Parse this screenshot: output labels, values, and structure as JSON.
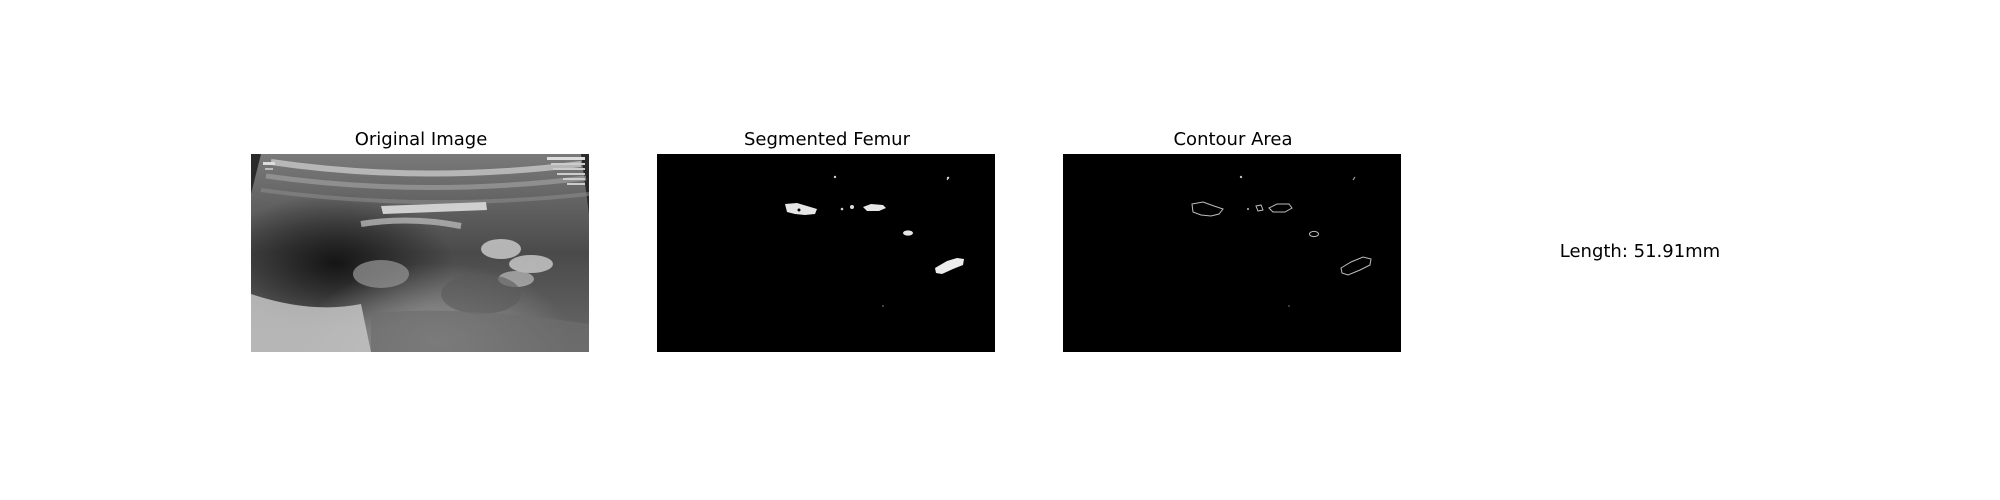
{
  "panels": [
    {
      "title": "Original Image"
    },
    {
      "title": "Segmented Femur"
    },
    {
      "title": "Contour Area"
    }
  ],
  "length_text": "Length: 51.91mm",
  "colors": {
    "background": "#ffffff",
    "image_background": "#000000",
    "segment_fill": "#e6e6e6",
    "contour_stroke": "#bdbdbd"
  }
}
